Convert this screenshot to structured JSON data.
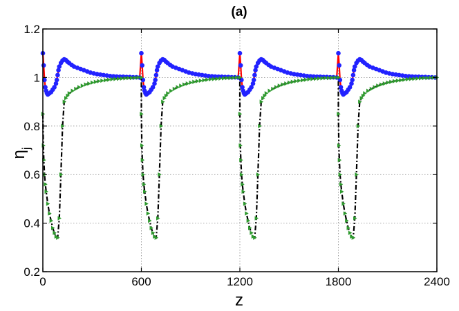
{
  "chart_data": {
    "type": "line",
    "title": "(a)",
    "xlabel": "z",
    "ylabel_main": "η",
    "ylabel_sub": "j",
    "xlim": [
      0,
      2400
    ],
    "ylim": [
      0.2,
      1.2
    ],
    "xticks": [
      0,
      600,
      1200,
      1800,
      2400
    ],
    "xtick_labels": [
      "0",
      "600",
      "1200",
      "1800",
      "2400"
    ],
    "yticks": [
      0.2,
      0.4,
      0.6,
      0.8,
      1.0,
      1.2
    ],
    "ytick_labels": [
      "0.2",
      "0.4",
      "0.6",
      "0.8",
      "1",
      "1.2"
    ],
    "grid": true,
    "period": 600,
    "series": [
      {
        "color": "#ff0000",
        "line": "solid",
        "marker": "circle",
        "marker_color": "#2222ff",
        "period_x": [
          0,
          5,
          10,
          15,
          20,
          25,
          30,
          40,
          50,
          60,
          70,
          80,
          85,
          90,
          95,
          100,
          110,
          120,
          130,
          140,
          150,
          160,
          175,
          190,
          210,
          230,
          250,
          270,
          290,
          310,
          330,
          350,
          370,
          390,
          410,
          430,
          450,
          470,
          490,
          510,
          530,
          550,
          570,
          590
        ],
        "period_y": [
          1.1,
          1.05,
          0.99,
          0.96,
          0.945,
          0.935,
          0.93,
          0.935,
          0.94,
          0.95,
          0.96,
          0.975,
          0.99,
          1.01,
          1.03,
          1.045,
          1.06,
          1.07,
          1.075,
          1.072,
          1.065,
          1.06,
          1.052,
          1.045,
          1.04,
          1.035,
          1.03,
          1.025,
          1.02,
          1.017,
          1.014,
          1.012,
          1.01,
          1.008,
          1.006,
          1.005,
          1.004,
          1.003,
          1.003,
          1.002,
          1.002,
          1.001,
          1.001,
          1.0
        ]
      },
      {
        "color": "#000000",
        "line": "dashdot",
        "marker": "triangle",
        "marker_color": "#2e9a2e",
        "period_x": [
          0,
          3,
          6,
          10,
          15,
          20,
          30,
          40,
          50,
          60,
          70,
          80,
          90,
          100,
          110,
          120,
          130,
          140,
          150,
          160,
          180,
          200,
          220,
          240,
          260,
          280,
          300,
          320,
          340,
          360,
          380,
          400,
          420,
          440,
          460,
          480,
          500,
          520,
          540,
          560,
          580,
          600
        ],
        "period_y": [
          0.85,
          0.72,
          0.66,
          0.6,
          0.56,
          0.53,
          0.48,
          0.44,
          0.41,
          0.38,
          0.36,
          0.345,
          0.34,
          0.42,
          0.6,
          0.8,
          0.9,
          0.915,
          0.925,
          0.935,
          0.945,
          0.953,
          0.96,
          0.966,
          0.971,
          0.975,
          0.979,
          0.982,
          0.985,
          0.987,
          0.989,
          0.991,
          0.993,
          0.994,
          0.995,
          0.996,
          0.997,
          0.998,
          0.998,
          0.999,
          1.0,
          1.0
        ]
      }
    ]
  }
}
